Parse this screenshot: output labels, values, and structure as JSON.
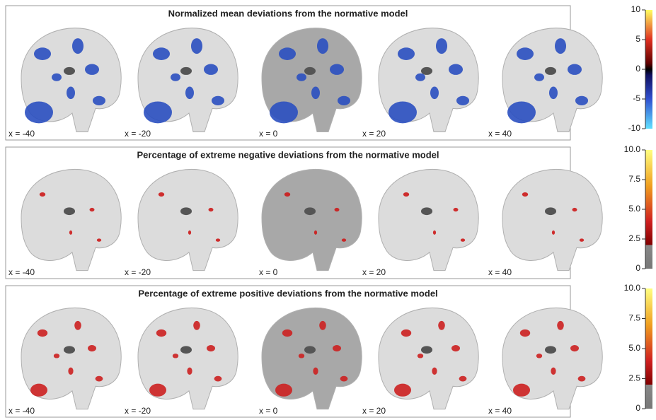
{
  "panels": [
    {
      "title": "Normalized mean deviations from the normative model",
      "slices": [
        "x = -40",
        "x = -20",
        "x = 0",
        "x = 20",
        "x = 40"
      ],
      "colorbar": {
        "lim": [
          -10,
          10
        ],
        "ticks": [
          10,
          5,
          0,
          -5,
          -10
        ]
      }
    },
    {
      "title": "Percentage of extreme negative deviations from the normative model",
      "slices": [
        "x = -40",
        "x = -20",
        "x = 0",
        "x = 20",
        "x = 40"
      ],
      "colorbar": {
        "lim": [
          0,
          10
        ],
        "ticks": [
          {
            "value": 10,
            "label": "10.0"
          },
          {
            "value": 7.5,
            "label": "7.5"
          },
          {
            "value": 5,
            "label": "5.0"
          },
          {
            "value": 2.5,
            "label": "2.5"
          },
          0
        ]
      }
    },
    {
      "title": "Percentage of extreme positive deviations from the normative model",
      "slices": [
        "x = -40",
        "x = -20",
        "x = 0",
        "x = 20",
        "x = 40"
      ],
      "colorbar": {
        "lim": [
          0,
          10
        ],
        "ticks": [
          {
            "value": 10,
            "label": "10.0"
          },
          {
            "value": 7.5,
            "label": "7.5"
          },
          {
            "value": 5,
            "label": "5.0"
          },
          {
            "value": 2.5,
            "label": "2.5"
          },
          0
        ]
      }
    }
  ]
}
